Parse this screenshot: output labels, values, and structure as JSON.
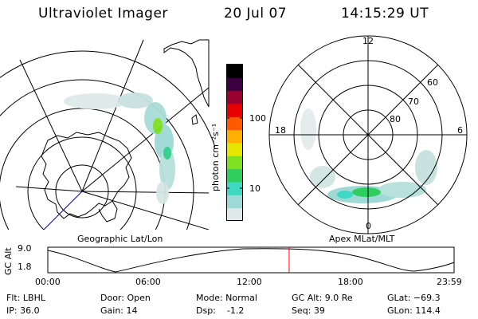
{
  "header": {
    "instrument": "Ultraviolet Imager",
    "date": "20 Jul 07",
    "time": "14:15:29 UT"
  },
  "left_map": {
    "caption": "Geographic Lat/Lon",
    "colors": {
      "coast": "#000000",
      "grid": "#000000",
      "meridian": "#00008b"
    }
  },
  "right_map": {
    "caption": "Apex MLat/MLT",
    "mlt_labels": {
      "top": "12",
      "bottom": "0",
      "left": "18",
      "right": "6"
    },
    "mlat_labels": [
      "60",
      "70",
      "80"
    ]
  },
  "colorbar": {
    "unit_label": "photon cm⁻²s⁻¹",
    "tick_labels": [
      "100",
      "10"
    ],
    "scale": "log",
    "colors": [
      "#dfe9e9",
      "#9ed9d6",
      "#3fd9c3",
      "#2ecf5e",
      "#7ee01e",
      "#e6e600",
      "#ffb000",
      "#ff5a00",
      "#e60000",
      "#9a0030",
      "#3a0040",
      "#000000"
    ]
  },
  "altitude_plot": {
    "ylabel": "GC Alt",
    "yticks": [
      "9.0",
      "1.8"
    ],
    "xticks": [
      "00:00",
      "06:00",
      "12:00",
      "18:00",
      "23:59"
    ],
    "current_time_color": "#ff0000",
    "current_time_fraction": 0.594
  },
  "info": {
    "filter": "Flt: LBHL",
    "ip": "IP: 36.0",
    "door": "Door: Open",
    "gain": "Gain: 14",
    "mode": "Mode: Normal",
    "dsp": "Dsp:    -1.2",
    "gc_alt": "GC Alt: 9.0 Re",
    "seq": "Seq: 39",
    "glat": "GLat: −69.3",
    "glon": "GLon: 114.4"
  }
}
